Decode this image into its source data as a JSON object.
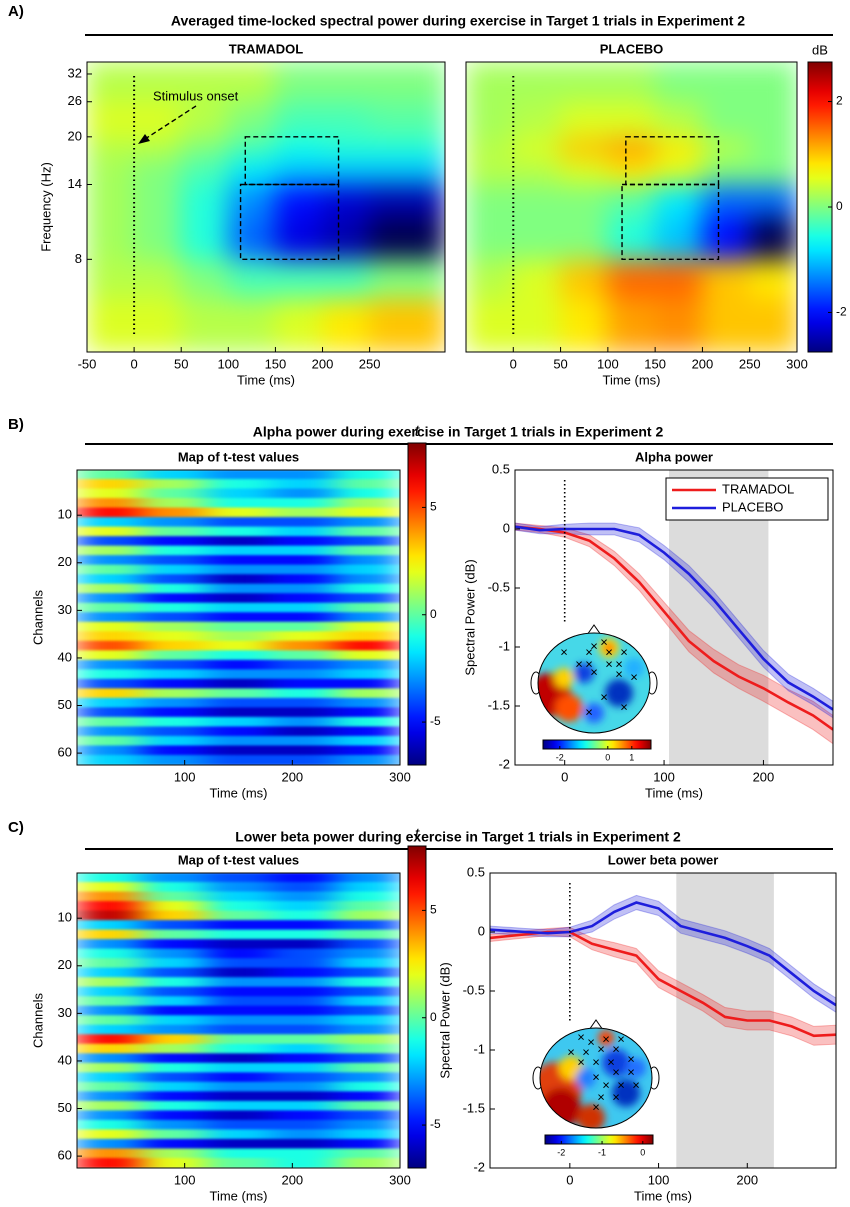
{
  "panels": [
    {
      "label": "A)",
      "title": "Averaged time-locked spectral power during exercise in Target 1 trials in Experiment 2"
    },
    {
      "label": "B)",
      "title": "Alpha power during exercise in Target 1 trials in Experiment 2"
    },
    {
      "label": "C)",
      "title": "Lower beta power during exercise in Target 1 trials in Experiment 2"
    }
  ],
  "chart_data": [
    {
      "type": "heatmap",
      "title": "TRAMADOL",
      "x_label": "Time (ms)",
      "y_label": "Frequency (Hz)",
      "x_edges": [
        -50,
        0,
        50,
        100,
        150,
        200,
        250,
        330
      ],
      "y_edges": [
        4,
        6,
        8,
        11,
        14,
        17,
        20,
        26,
        35
      ],
      "values": [
        [
          0.5,
          0.5,
          0.3,
          0.3,
          0.5,
          0.8,
          1.0
        ],
        [
          0.3,
          0.3,
          0,
          -0.3,
          -0.3,
          -0.3,
          0
        ],
        [
          0.2,
          0,
          -0.5,
          -1.5,
          -2.2,
          -2.5,
          -3
        ],
        [
          0.2,
          0,
          -0.5,
          -1.3,
          -2.0,
          -2.3,
          -2.5
        ],
        [
          0.2,
          0,
          -0.3,
          -0.8,
          -1.0,
          -1.0,
          -1.0
        ],
        [
          0.3,
          0.3,
          0,
          -0.3,
          -0.6,
          -0.5,
          -0.5
        ],
        [
          0.5,
          0.5,
          0.3,
          0,
          -0.3,
          -0.3,
          -0.2
        ],
        [
          0.3,
          0.3,
          0.3,
          0.3,
          0,
          0,
          0
        ]
      ],
      "xlim": [
        -50,
        330
      ],
      "xticks": [
        -50,
        0,
        50,
        100,
        150,
        200,
        250
      ],
      "ylim": [
        4,
        35
      ],
      "yticks": [
        8,
        14,
        20,
        26,
        32
      ],
      "yscale": "log",
      "clim": [
        -2.75,
        2.75
      ],
      "colormap": "jet",
      "onset": 0,
      "boxes": [
        {
          "x": [
            118,
            217
          ],
          "y": [
            14,
            20
          ]
        },
        {
          "x": [
            113,
            217
          ],
          "y": [
            8,
            14
          ]
        }
      ],
      "annotation": "Stimulus onset"
    },
    {
      "type": "heatmap",
      "title": "PLACEBO",
      "x_label": "Time (ms)",
      "x_edges": [
        -50,
        0,
        50,
        100,
        150,
        200,
        250,
        300
      ],
      "y_edges": [
        4,
        6,
        8,
        11,
        14,
        17,
        20,
        26,
        35
      ],
      "values": [
        [
          0.5,
          0.5,
          0.8,
          1.2,
          1.3,
          1.0,
          1.0
        ],
        [
          0.3,
          0.5,
          1.0,
          1.5,
          1.5,
          1.0,
          0.8
        ],
        [
          0,
          0,
          0,
          -0.5,
          -1.0,
          -2.0,
          -3
        ],
        [
          0,
          0,
          0,
          -0.2,
          -0.8,
          -1.5,
          -1.5
        ],
        [
          0.3,
          0.3,
          0.5,
          0.8,
          0.5,
          0,
          0
        ],
        [
          0.3,
          0.5,
          1.0,
          1.2,
          0.8,
          0.3,
          0
        ],
        [
          0.2,
          0.3,
          0.5,
          0.5,
          0.3,
          0,
          0
        ],
        [
          0.2,
          0.2,
          0.2,
          0.2,
          0,
          0,
          0
        ]
      ],
      "xlim": [
        -50,
        300
      ],
      "xticks": [
        0,
        50,
        100,
        150,
        200,
        250,
        300
      ],
      "ylim": [
        4,
        35
      ],
      "yscale": "log",
      "clim": [
        -2.75,
        2.75
      ],
      "colormap": "jet",
      "onset": 0,
      "boxes": [
        {
          "x": [
            119,
            217
          ],
          "y": [
            14,
            20
          ]
        },
        {
          "x": [
            115,
            217
          ],
          "y": [
            8,
            14
          ]
        }
      ],
      "colorbar": {
        "label": "dB",
        "ticks": [
          -2,
          0,
          2
        ]
      }
    },
    {
      "type": "heatmap",
      "title": "Map of t-test values",
      "x_label": "Time (ms)",
      "y_label": "Channels",
      "x_edges": [
        0,
        60,
        120,
        180,
        240,
        300
      ],
      "y_edges": [
        0.5,
        2.5,
        4.5,
        6.5,
        8.5,
        10.5,
        12.5,
        14.5,
        16.5,
        18.5,
        20.5,
        22.5,
        24.5,
        26.5,
        28.5,
        30.5,
        32.5,
        34.5,
        36.5,
        38.5,
        40.5,
        42.5,
        44.5,
        46.5,
        48.5,
        50.5,
        52.5,
        54.5,
        56.5,
        58.5,
        60.5,
        62.5
      ],
      "values": [
        [
          0,
          -2,
          -3,
          -3,
          -1
        ],
        [
          3,
          1,
          -1,
          -2,
          0
        ],
        [
          2,
          0,
          -2,
          -3,
          -1
        ],
        [
          4,
          1,
          -1,
          -1,
          1
        ],
        [
          6,
          4,
          2,
          1,
          2
        ],
        [
          -2,
          -3,
          -4,
          -4,
          -3
        ],
        [
          2,
          0,
          -1,
          -2,
          0
        ],
        [
          -4,
          -5,
          -6,
          -5,
          -4
        ],
        [
          1,
          -1,
          -2,
          -2,
          0
        ],
        [
          -3,
          -4,
          -5,
          -5,
          -3
        ],
        [
          0,
          -2,
          -3,
          -3,
          -2
        ],
        [
          -2,
          -4,
          -6,
          -5,
          -3
        ],
        [
          1,
          -1,
          -3,
          -3,
          -1
        ],
        [
          -3,
          -5,
          -6,
          -5,
          -4
        ],
        [
          0,
          -1,
          -2,
          -2,
          0
        ],
        [
          -3,
          -4,
          -5,
          -5,
          -3
        ],
        [
          2,
          1,
          0,
          0,
          2
        ],
        [
          3,
          2,
          1,
          2,
          3
        ],
        [
          5,
          3,
          2,
          4,
          6
        ],
        [
          2,
          0,
          -1,
          0,
          2
        ],
        [
          -3,
          -4,
          -5,
          -4,
          -3
        ],
        [
          -1,
          -2,
          -3,
          -3,
          -2
        ],
        [
          -4,
          -5,
          -6,
          -5,
          -5
        ],
        [
          3,
          1,
          0,
          -1,
          1
        ],
        [
          -2,
          -3,
          -4,
          -4,
          -3
        ],
        [
          -4,
          -5,
          -6,
          -6,
          -5
        ],
        [
          0,
          -1,
          -2,
          -3,
          -1
        ],
        [
          -3,
          -4,
          -5,
          -6,
          -5
        ],
        [
          0,
          -2,
          -3,
          -3,
          -2
        ],
        [
          -3,
          -5,
          -6,
          -6,
          -5
        ],
        [
          -2,
          -3,
          -4,
          -4,
          -3
        ]
      ],
      "xlim": [
        0,
        300
      ],
      "xticks": [
        100,
        200,
        300
      ],
      "ylim": [
        0.5,
        62.5
      ],
      "yticks": [
        10,
        20,
        30,
        40,
        50,
        60
      ],
      "yreverse": true,
      "clim": [
        -7,
        8
      ],
      "colormap": "jet",
      "colorbar": {
        "label": "t",
        "ticks": [
          -5,
          0,
          5
        ]
      }
    },
    {
      "type": "line",
      "title": "Alpha power",
      "x_label": "Time (ms)",
      "y_label": "Spectral Power (dB)",
      "x": [
        -50,
        -25,
        0,
        25,
        50,
        75,
        100,
        125,
        150,
        175,
        200,
        225,
        250,
        270
      ],
      "series": [
        {
          "name": "TRAMADOL",
          "color": "#ee1c1c",
          "values": [
            0.02,
            0.0,
            -0.03,
            -0.1,
            -0.25,
            -0.45,
            -0.7,
            -0.95,
            -1.12,
            -1.25,
            -1.35,
            -1.47,
            -1.58,
            -1.7
          ],
          "error": [
            0.03,
            0.03,
            0.04,
            0.05,
            0.06,
            0.07,
            0.08,
            0.09,
            0.1,
            0.1,
            0.11,
            0.11,
            0.12,
            0.12
          ]
        },
        {
          "name": "PLACEBO",
          "color": "#1e1edc",
          "values": [
            0.02,
            -0.01,
            0.0,
            0.0,
            0.0,
            -0.05,
            -0.2,
            -0.38,
            -0.6,
            -0.85,
            -1.1,
            -1.3,
            -1.42,
            -1.53
          ],
          "error": [
            0.03,
            0.03,
            0.04,
            0.05,
            0.05,
            0.06,
            0.06,
            0.07,
            0.07,
            0.07,
            0.07,
            0.07,
            0.07,
            0.07
          ]
        }
      ],
      "xlim": [
        -50,
        270
      ],
      "xticks": [
        0,
        100,
        200
      ],
      "ylim": [
        -2,
        0.5
      ],
      "yticks": [
        -2,
        -1.5,
        -1,
        -0.5,
        0,
        0.5
      ],
      "shade": [
        105,
        205
      ],
      "onset_line": {
        "x": 0,
        "y": [
          -0.8,
          0.5
        ]
      },
      "legend": "upper right",
      "inset": {
        "clim": [
          -2.7,
          1.8
        ],
        "ticks": [
          -2,
          0,
          1
        ]
      }
    },
    {
      "type": "heatmap",
      "title": "Map of t-test values",
      "x_label": "Time (ms)",
      "y_label": "Channels",
      "x_edges": [
        0,
        60,
        120,
        180,
        240,
        300
      ],
      "y_edges": [
        0.5,
        2.5,
        4.5,
        6.5,
        8.5,
        10.5,
        12.5,
        14.5,
        16.5,
        18.5,
        20.5,
        22.5,
        24.5,
        26.5,
        28.5,
        30.5,
        32.5,
        34.5,
        36.5,
        38.5,
        40.5,
        42.5,
        44.5,
        46.5,
        48.5,
        50.5,
        52.5,
        54.5,
        56.5,
        58.5,
        60.5,
        62.5
      ],
      "values": [
        [
          -1,
          -3,
          -4,
          -5,
          -3
        ],
        [
          2,
          -1,
          -3,
          -4,
          -2
        ],
        [
          4,
          0,
          -2,
          -3,
          -1
        ],
        [
          6,
          2,
          -1,
          -2,
          0
        ],
        [
          7,
          3,
          0,
          -1,
          1
        ],
        [
          -2,
          -4,
          -5,
          -5,
          -4
        ],
        [
          3,
          0,
          -1,
          -1,
          0
        ],
        [
          -3,
          -5,
          -6,
          -6,
          -4
        ],
        [
          -1,
          -3,
          -5,
          -4,
          -3
        ],
        [
          0,
          -2,
          -4,
          -4,
          -2
        ],
        [
          -2,
          -4,
          -6,
          -5,
          -4
        ],
        [
          1,
          -1,
          -3,
          -3,
          -1
        ],
        [
          -2,
          -4,
          -5,
          -5,
          -4
        ],
        [
          0,
          -2,
          -4,
          -4,
          -2
        ],
        [
          -3,
          -5,
          -5,
          -5,
          -4
        ],
        [
          0,
          -2,
          -3,
          -3,
          -2
        ],
        [
          -2,
          -3,
          -4,
          -4,
          -3
        ],
        [
          6,
          3,
          0,
          0,
          1
        ],
        [
          3,
          1,
          -1,
          -2,
          0
        ],
        [
          -3,
          -5,
          -6,
          -5,
          -4
        ],
        [
          1,
          -1,
          -2,
          -2,
          0
        ],
        [
          -2,
          -4,
          -5,
          -4,
          -3
        ],
        [
          0,
          -2,
          -3,
          -3,
          -1
        ],
        [
          -3,
          -5,
          -6,
          -6,
          -5
        ],
        [
          1,
          -1,
          -2,
          -2,
          0
        ],
        [
          -3,
          -5,
          -6,
          -5,
          -4
        ],
        [
          -1,
          -3,
          -4,
          -4,
          -3
        ],
        [
          2,
          0,
          -2,
          -3,
          -2
        ],
        [
          -3,
          -5,
          -6,
          -6,
          -5
        ],
        [
          4,
          1,
          -1,
          -1,
          0
        ],
        [
          6,
          2,
          0,
          -1,
          1
        ]
      ],
      "xlim": [
        0,
        300
      ],
      "xticks": [
        100,
        200,
        300
      ],
      "ylim": [
        0.5,
        62.5
      ],
      "yticks": [
        10,
        20,
        30,
        40,
        50,
        60
      ],
      "yreverse": true,
      "clim": [
        -7,
        8
      ],
      "colormap": "jet",
      "colorbar": {
        "label": "t",
        "ticks": [
          -5,
          0,
          5
        ]
      }
    },
    {
      "type": "line",
      "title": "Lower beta power",
      "x_label": "Time (ms)",
      "y_label": "Spectral Power (dB)",
      "x": [
        -90,
        -50,
        -25,
        0,
        25,
        50,
        75,
        100,
        125,
        150,
        175,
        200,
        225,
        250,
        275,
        300
      ],
      "series": [
        {
          "name": "TRAMADOL",
          "color": "#ee1c1c",
          "values": [
            -0.05,
            -0.02,
            0.0,
            0.0,
            -0.1,
            -0.15,
            -0.2,
            -0.4,
            -0.5,
            -0.6,
            -0.72,
            -0.75,
            -0.75,
            -0.8,
            -0.88,
            -0.87
          ],
          "error": [
            0.03,
            0.03,
            0.03,
            0.04,
            0.05,
            0.06,
            0.06,
            0.07,
            0.07,
            0.07,
            0.08,
            0.08,
            0.08,
            0.08,
            0.08,
            0.08
          ]
        },
        {
          "name": "PLACEBO",
          "color": "#1e1edc",
          "values": [
            0.02,
            0.0,
            -0.01,
            0.0,
            0.05,
            0.17,
            0.25,
            0.2,
            0.05,
            0.0,
            -0.05,
            -0.12,
            -0.2,
            -0.35,
            -0.5,
            -0.62
          ],
          "error": [
            0.03,
            0.03,
            0.03,
            0.04,
            0.05,
            0.06,
            0.06,
            0.06,
            0.06,
            0.06,
            0.06,
            0.06,
            0.06,
            0.06,
            0.06,
            0.06
          ]
        }
      ],
      "xlim": [
        -90,
        300
      ],
      "xticks": [
        0,
        100,
        200
      ],
      "ylim": [
        -2,
        0.5
      ],
      "yticks": [
        -2,
        -1.5,
        -1,
        -0.5,
        0,
        0.5
      ],
      "shade": [
        120,
        230
      ],
      "onset_line": {
        "x": 0,
        "y": [
          -0.75,
          0.5
        ]
      },
      "inset": {
        "clim": [
          -2.4,
          0.25
        ],
        "ticks": [
          -2,
          -1,
          0
        ]
      }
    }
  ]
}
